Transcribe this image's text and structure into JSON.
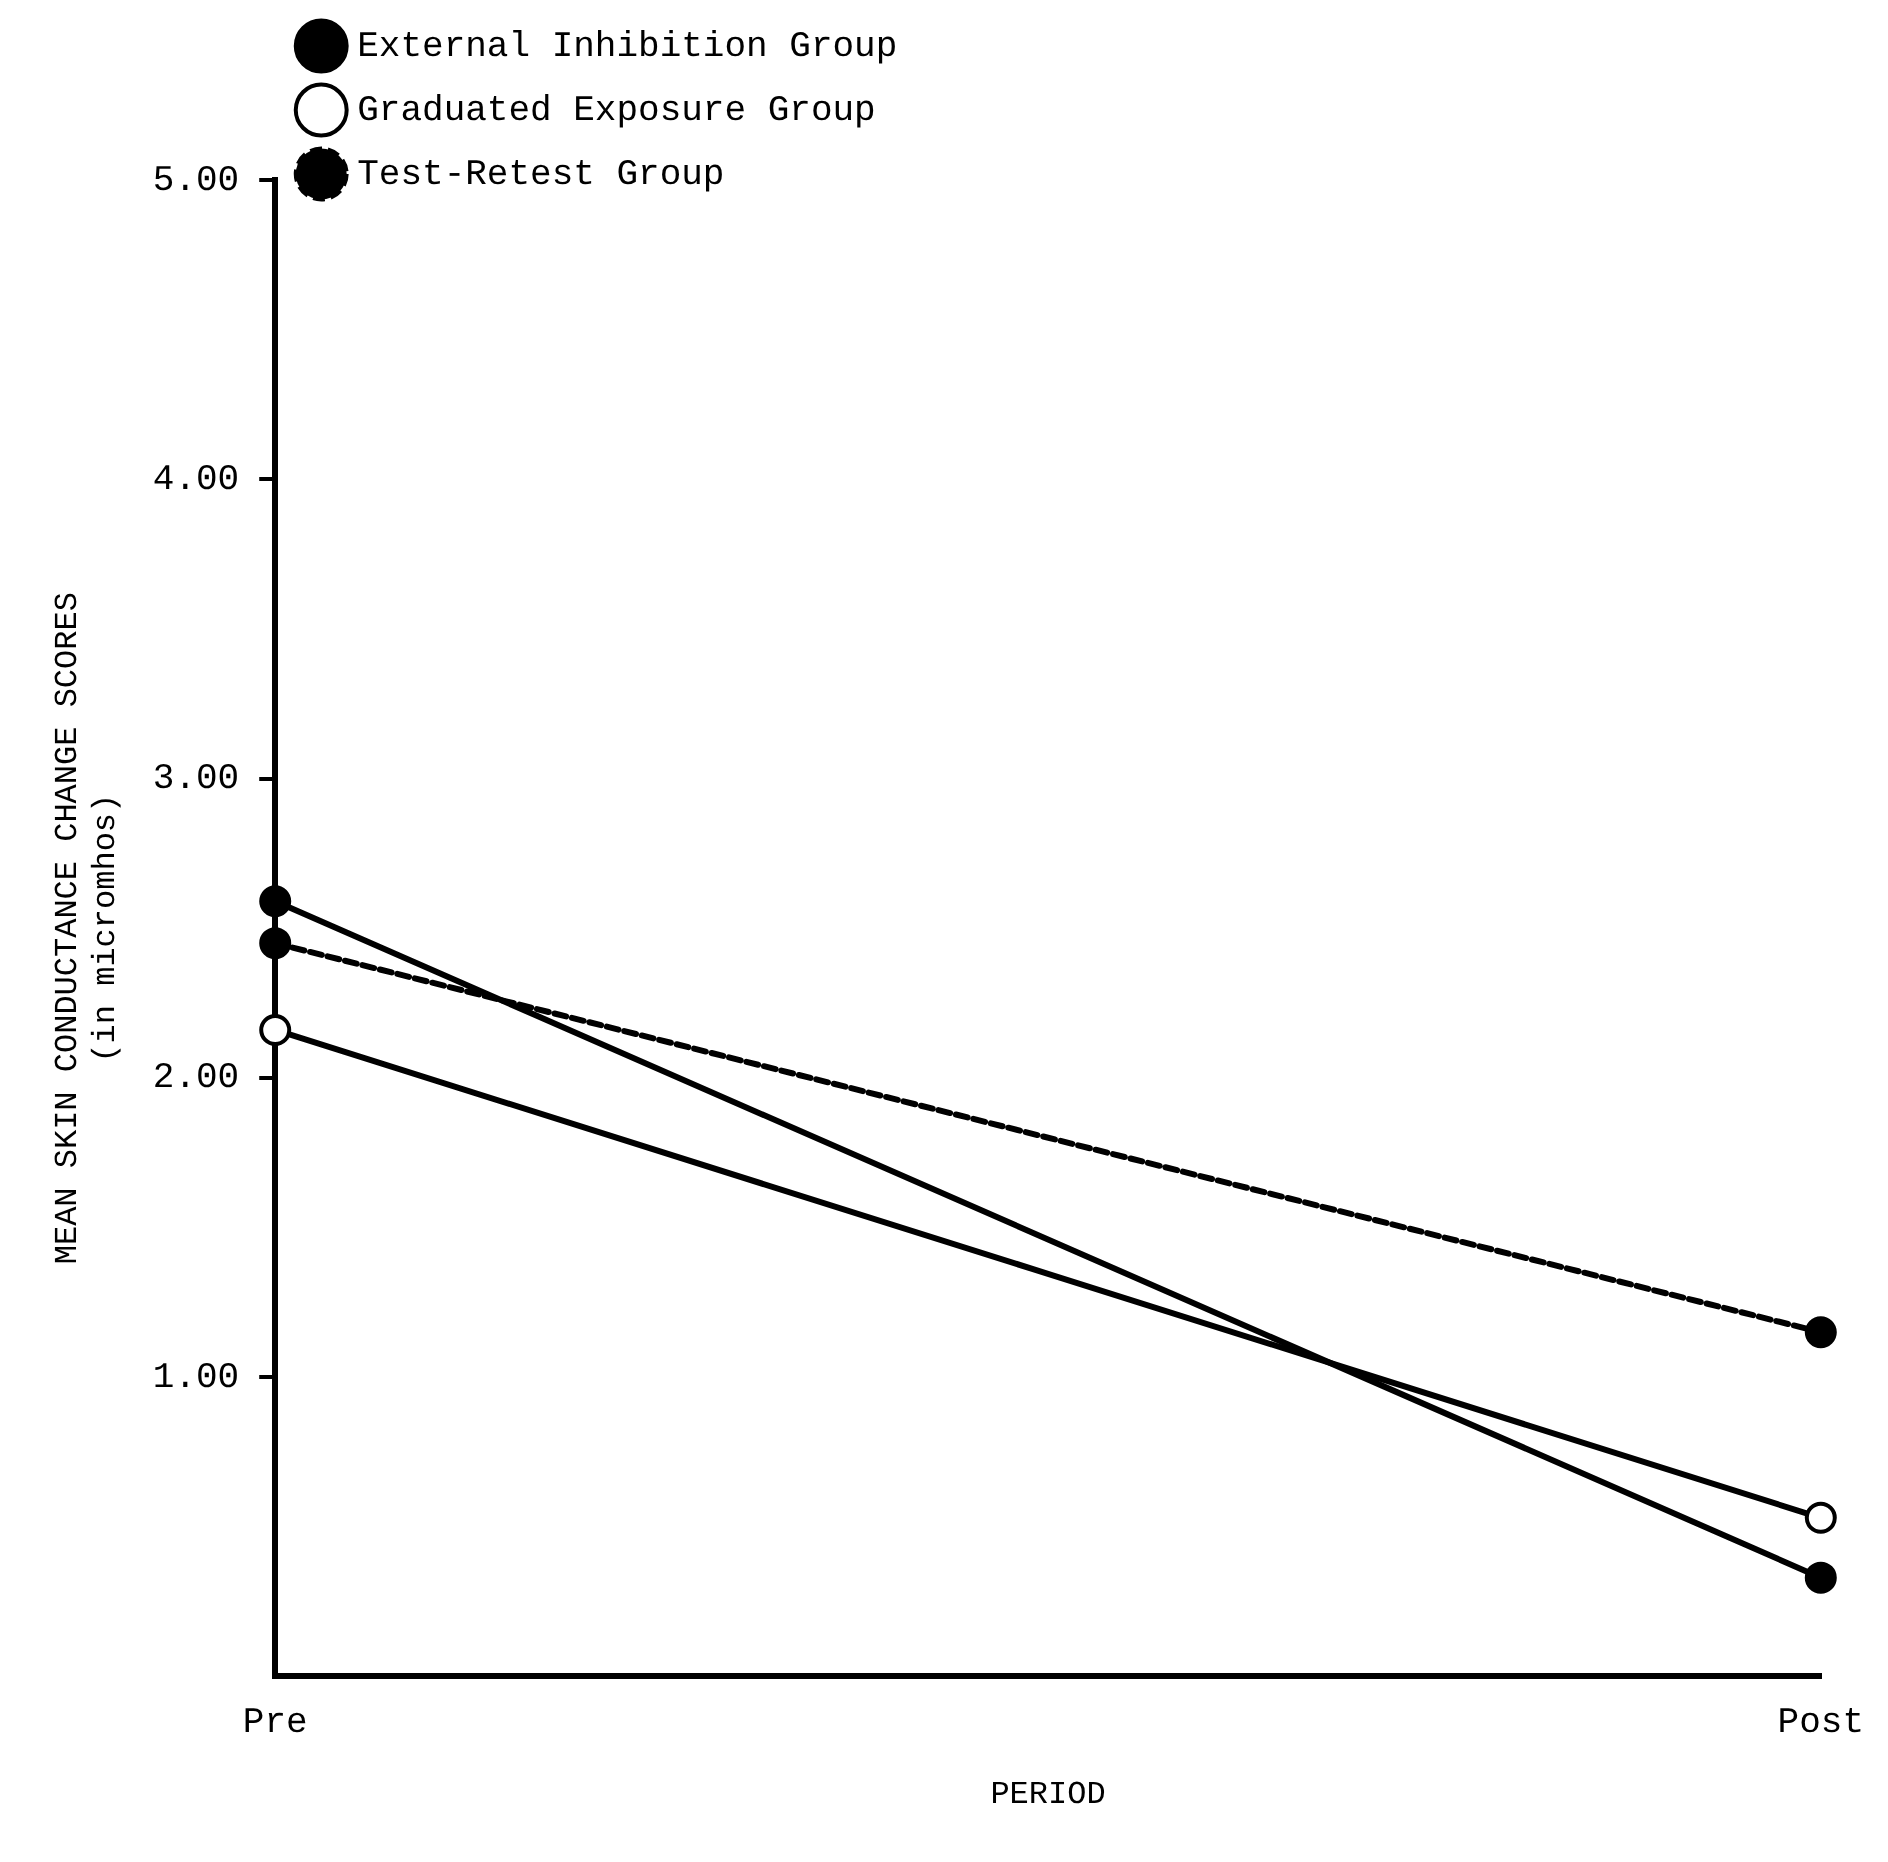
{
  "chart_data": {
    "type": "line",
    "xlabel": "PERIOD",
    "ylabel": "MEAN SKIN CONDUCTANCE CHANGE SCORES\n(in micromhos)",
    "categories": [
      "Pre",
      "Post"
    ],
    "series": [
      {
        "name": "External Inhibition Group",
        "color": "#000000",
        "values": [
          2.59,
          0.33
        ]
      },
      {
        "name": "Graduated Exposure Group",
        "color": "#000000",
        "colors": [
          "#ffffff",
          "#ffffff"
        ],
        "values": [
          2.16,
          0.53
        ]
      },
      {
        "name": "Test-Retest Group",
        "color": "#000000",
        "line_style": "dashed",
        "values": [
          2.45,
          1.15
        ]
      }
    ],
    "ylim": [
      0,
      5
    ],
    "yticks": [
      {
        "value": 1,
        "label": "1.00"
      },
      {
        "value": 2,
        "label": "2.00"
      },
      {
        "value": 3,
        "label": "3.00"
      },
      {
        "value": 4,
        "label": "4.00"
      },
      {
        "value": 5,
        "label": "5.00"
      }
    ],
    "grid": false,
    "legend": "top",
    "marker": "circle"
  }
}
